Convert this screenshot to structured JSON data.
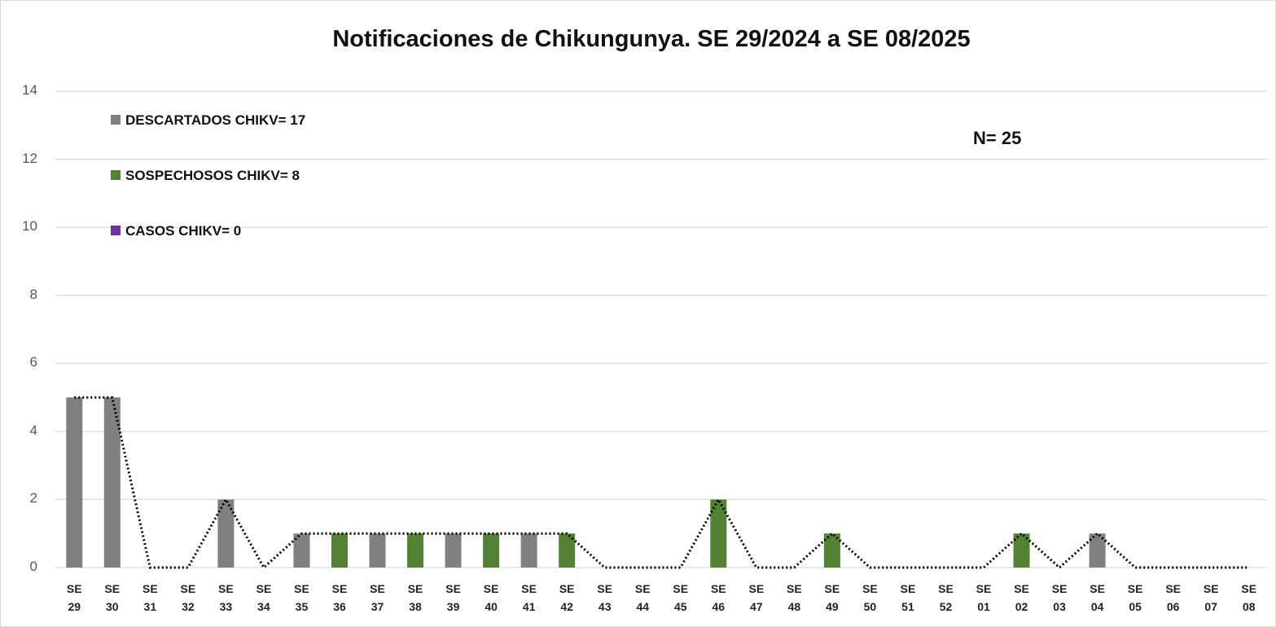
{
  "chart_data": {
    "type": "bar",
    "stacked": true,
    "title": "Notificaciones de Chikungunya. SE 29/2024 a SE 08/2025",
    "annotation": "N= 25",
    "categories": [
      "SE 29",
      "SE 30",
      "SE 31",
      "SE 32",
      "SE 33",
      "SE 34",
      "SE 35",
      "SE 36",
      "SE 37",
      "SE 38",
      "SE 39",
      "SE 40",
      "SE 41",
      "SE 42",
      "SE 43",
      "SE 44",
      "SE 45",
      "SE 46",
      "SE 47",
      "SE 48",
      "SE 49",
      "SE 50",
      "SE 51",
      "SE 52",
      "SE 01",
      "SE 02",
      "SE 03",
      "SE 04",
      "SE 05",
      "SE 06",
      "SE 07",
      "SE 08"
    ],
    "series": [
      {
        "name": "DESCARTADOS CHIKV= 17",
        "color": "#808080",
        "values": [
          5,
          5,
          0,
          0,
          2,
          0,
          1,
          0,
          1,
          0,
          1,
          0,
          1,
          0,
          0,
          0,
          0,
          0,
          0,
          0,
          0,
          0,
          0,
          0,
          0,
          0,
          0,
          1,
          0,
          0,
          0,
          0
        ]
      },
      {
        "name": "SOSPECHOSOS CHIKV= 8",
        "color": "#548235",
        "values": [
          0,
          0,
          0,
          0,
          0,
          0,
          0,
          1,
          0,
          1,
          0,
          1,
          0,
          1,
          0,
          0,
          0,
          2,
          0,
          0,
          1,
          0,
          0,
          0,
          0,
          1,
          0,
          0,
          0,
          0,
          0,
          0
        ]
      },
      {
        "name": "CASOS CHIKV= 0",
        "color": "#7030a0",
        "values": [
          0,
          0,
          0,
          0,
          0,
          0,
          0,
          0,
          0,
          0,
          0,
          0,
          0,
          0,
          0,
          0,
          0,
          0,
          0,
          0,
          0,
          0,
          0,
          0,
          0,
          0,
          0,
          0,
          0,
          0,
          0,
          0
        ]
      }
    ],
    "total_line": {
      "color": "#000000",
      "values": [
        5,
        5,
        0,
        0,
        2,
        0,
        1,
        1,
        1,
        1,
        1,
        1,
        1,
        1,
        0,
        0,
        0,
        2,
        0,
        0,
        1,
        0,
        0,
        0,
        0,
        1,
        0,
        1,
        0,
        0,
        0,
        0
      ]
    },
    "ylim": [
      0,
      14
    ],
    "yticks": [
      0,
      2,
      4,
      6,
      8,
      10,
      12,
      14
    ],
    "grid": true,
    "legend": "top-left"
  }
}
